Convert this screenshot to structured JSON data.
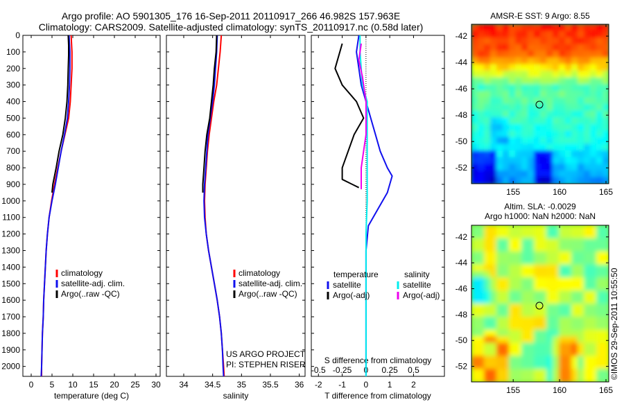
{
  "header": {
    "line1": "Argo profile: AO 5901305_176 16-Sep-2011 20110917_266 46.982S 157.963E",
    "line2": "Climatology: CARS2009. Satellite-adjusted climatology: synTS_20110917.nc (0.58d later)"
  },
  "side_label": "©IMOS 29-Sep-2011 10:55:50",
  "depth_ticks": [
    "0",
    "100",
    "200",
    "300",
    "400",
    "500",
    "600",
    "700",
    "800",
    "900",
    "1000",
    "1100",
    "1200",
    "1300",
    "1400",
    "1500",
    "1600",
    "1700",
    "1800",
    "1900",
    "2000"
  ],
  "colors": {
    "red": "#ff0000",
    "blue": "#1010ee",
    "black": "#000000",
    "cyan": "#00eeee",
    "magenta": "#ee00ee"
  },
  "chart_data": [
    {
      "type": "line",
      "xlabel": "temperature (deg C)",
      "xlim": [
        -2,
        31
      ],
      "x_ticks": [
        "0",
        "5",
        "10",
        "15",
        "20",
        "25",
        "30"
      ],
      "ylim": [
        0,
        2060
      ],
      "y_inverted": true,
      "legend": {
        "placement": "lower-middle",
        "entries": [
          "climatology",
          "satellite-adj. clim.",
          "Argo(..raw -QC)"
        ]
      },
      "series": [
        {
          "name": "climatology",
          "color": "#ff0000",
          "points": [
            [
              9.6,
              0
            ],
            [
              9.8,
              100
            ],
            [
              9.8,
              200
            ],
            [
              9.6,
              300
            ],
            [
              9.4,
              400
            ],
            [
              9.0,
              500
            ],
            [
              8.1,
              600
            ],
            [
              7.2,
              700
            ],
            [
              6.4,
              800
            ],
            [
              5.6,
              900
            ],
            [
              4.9,
              1000
            ],
            [
              4.3,
              1100
            ],
            [
              3.9,
              1200
            ],
            [
              3.6,
              1300
            ],
            [
              3.4,
              1400
            ],
            [
              3.2,
              1500
            ],
            [
              3.0,
              1600
            ],
            [
              2.9,
              1700
            ],
            [
              2.7,
              1800
            ],
            [
              2.6,
              1900
            ],
            [
              2.5,
              2000
            ],
            [
              2.5,
              2060
            ]
          ]
        },
        {
          "name": "satellite-adj. clim.",
          "color": "#1010ee",
          "points": [
            [
              9.1,
              0
            ],
            [
              9.3,
              100
            ],
            [
              9.3,
              200
            ],
            [
              9.2,
              300
            ],
            [
              9.0,
              400
            ],
            [
              8.7,
              500
            ],
            [
              8.0,
              600
            ],
            [
              7.2,
              700
            ],
            [
              6.5,
              800
            ],
            [
              5.8,
              900
            ],
            [
              5.0,
              1000
            ],
            [
              4.3,
              1100
            ],
            [
              3.9,
              1200
            ],
            [
              3.6,
              1300
            ],
            [
              3.4,
              1400
            ],
            [
              3.2,
              1500
            ],
            [
              3.0,
              1600
            ],
            [
              2.9,
              1700
            ],
            [
              2.7,
              1800
            ],
            [
              2.6,
              1900
            ],
            [
              2.5,
              2000
            ],
            [
              2.4,
              2060
            ]
          ]
        },
        {
          "name": "Argo(..raw -QC)",
          "color": "#000000",
          "points": [
            [
              8.9,
              0
            ],
            [
              9.0,
              60
            ],
            [
              9.0,
              120
            ],
            [
              8.9,
              200
            ],
            [
              8.8,
              300
            ],
            [
              8.6,
              400
            ],
            [
              8.2,
              500
            ],
            [
              7.6,
              600
            ],
            [
              6.7,
              700
            ],
            [
              6.0,
              800
            ],
            [
              5.2,
              900
            ],
            [
              5.0,
              950
            ]
          ]
        }
      ]
    },
    {
      "type": "line",
      "xlabel": "salinity",
      "xlim": [
        33.7,
        36.1
      ],
      "x_ticks": [
        "34",
        "34.5",
        "35",
        "35.5",
        "36"
      ],
      "ylim": [
        0,
        2060
      ],
      "y_inverted": true,
      "legend": {
        "placement": "lower-right",
        "entries": [
          "climatology",
          "satellite-adj. clim.",
          "Argo(..raw -QC)"
        ]
      },
      "annotation": [
        "US ARGO PROJECT",
        "PI: STEPHEN RISER"
      ],
      "series": [
        {
          "name": "climatology",
          "color": "#ff0000",
          "points": [
            [
              34.65,
              0
            ],
            [
              34.63,
              100
            ],
            [
              34.6,
              200
            ],
            [
              34.57,
              300
            ],
            [
              34.52,
              400
            ],
            [
              34.48,
              500
            ],
            [
              34.44,
              600
            ],
            [
              34.41,
              700
            ],
            [
              34.39,
              800
            ],
            [
              34.37,
              900
            ],
            [
              34.36,
              1000
            ],
            [
              34.37,
              1100
            ],
            [
              34.39,
              1200
            ],
            [
              34.43,
              1300
            ],
            [
              34.48,
              1400
            ],
            [
              34.53,
              1500
            ],
            [
              34.58,
              1600
            ],
            [
              34.62,
              1700
            ],
            [
              34.65,
              1800
            ],
            [
              34.67,
              1900
            ],
            [
              34.69,
              2000
            ],
            [
              34.7,
              2060
            ]
          ]
        },
        {
          "name": "satellite-adj. clim.",
          "color": "#1010ee",
          "points": [
            [
              34.58,
              0
            ],
            [
              34.57,
              100
            ],
            [
              34.55,
              200
            ],
            [
              34.53,
              300
            ],
            [
              34.5,
              400
            ],
            [
              34.46,
              500
            ],
            [
              34.42,
              600
            ],
            [
              34.4,
              700
            ],
            [
              34.38,
              800
            ],
            [
              34.36,
              900
            ],
            [
              34.35,
              1000
            ],
            [
              34.36,
              1100
            ],
            [
              34.39,
              1200
            ],
            [
              34.43,
              1300
            ],
            [
              34.48,
              1400
            ],
            [
              34.53,
              1500
            ],
            [
              34.58,
              1600
            ],
            [
              34.62,
              1700
            ],
            [
              34.65,
              1800
            ],
            [
              34.67,
              1900
            ],
            [
              34.68,
              2000
            ],
            [
              34.69,
              2060
            ]
          ]
        },
        {
          "name": "Argo(..raw -QC)",
          "color": "#000000",
          "points": [
            [
              34.57,
              0
            ],
            [
              34.56,
              100
            ],
            [
              34.53,
              200
            ],
            [
              34.51,
              300
            ],
            [
              34.48,
              400
            ],
            [
              34.45,
              500
            ],
            [
              34.4,
              600
            ],
            [
              34.37,
              700
            ],
            [
              34.35,
              800
            ],
            [
              34.33,
              900
            ],
            [
              34.33,
              950
            ]
          ]
        }
      ]
    },
    {
      "type": "line",
      "xlabel": "T difference from climatology",
      "xlabel_top": "S difference from climatology",
      "xlim": [
        -2.3,
        3.3
      ],
      "x_ticks": [
        "-2",
        "-1",
        "0",
        "1",
        "2"
      ],
      "x_ticks_top": [
        "-0.5",
        "-0.25",
        "0",
        "0.25",
        "0.5"
      ],
      "ylim": [
        0,
        2060
      ],
      "y_inverted": true,
      "legend": {
        "placement": "lower-middle",
        "headers": [
          "temperature",
          "salinity"
        ],
        "entries": [
          "satellite",
          "Argo(-adj)",
          "satellite",
          "Argo(-adj)"
        ]
      },
      "series": [
        {
          "name": "satellite",
          "color": "#1010ee",
          "points": [
            [
              -0.3,
              0
            ],
            [
              -0.4,
              100
            ],
            [
              -0.3,
              200
            ],
            [
              -0.2,
              300
            ],
            [
              0.0,
              400
            ],
            [
              0.2,
              500
            ],
            [
              0.4,
              600
            ],
            [
              0.6,
              700
            ],
            [
              0.9,
              800
            ],
            [
              1.1,
              850
            ],
            [
              0.9,
              950
            ],
            [
              0.5,
              1050
            ],
            [
              0.1,
              1150
            ],
            [
              0.0,
              1300
            ],
            [
              0.0,
              1500
            ],
            [
              0.0,
              1700
            ],
            [
              0.0,
              1900
            ],
            [
              0.0,
              2060
            ]
          ]
        },
        {
          "name": "Argo(-adj)",
          "color": "#000000",
          "points": [
            [
              -1.0,
              50
            ],
            [
              -1.3,
              200
            ],
            [
              -1.0,
              300
            ],
            [
              -0.4,
              400
            ],
            [
              -0.1,
              500
            ],
            [
              -0.5,
              600
            ],
            [
              -1.0,
              800
            ],
            [
              -1.0,
              870
            ],
            [
              -0.3,
              920
            ]
          ]
        },
        {
          "name": "satellite",
          "color": "#00eeee",
          "points": [
            [
              -0.25,
              0
            ],
            [
              -0.25,
              100
            ],
            [
              -0.2,
              200
            ],
            [
              -0.15,
              300
            ],
            [
              0.05,
              400
            ],
            [
              0.05,
              600
            ],
            [
              0.05,
              800
            ],
            [
              0.05,
              1000
            ],
            [
              0.0,
              1200
            ],
            [
              0.0,
              1400
            ],
            [
              0.0,
              1600
            ],
            [
              0.0,
              1800
            ],
            [
              0.0,
              2000
            ],
            [
              0.0,
              2060
            ]
          ]
        },
        {
          "name": "Argo(-adj)",
          "color": "#ee00ee",
          "points": [
            [
              -0.2,
              50
            ],
            [
              -0.3,
              150
            ],
            [
              -0.15,
              250
            ],
            [
              0.0,
              400
            ],
            [
              0.0,
              500
            ],
            [
              0.0,
              600
            ],
            [
              -0.1,
              700
            ],
            [
              -0.2,
              800
            ],
            [
              -0.2,
              930
            ]
          ]
        }
      ]
    },
    {
      "type": "heatmap",
      "title": "AMSR-E SST: 9 Argo: 8.55",
      "x_ticks": [
        "155",
        "160",
        "165"
      ],
      "y_ticks": [
        "-42",
        "-44",
        "-46",
        "-48",
        "-50",
        "-52"
      ],
      "xlim": [
        150.5,
        165.3
      ],
      "ylim": [
        -53.2,
        -41.1
      ],
      "colormap": "jet",
      "argo_position": [
        157.963,
        -46.982
      ]
    },
    {
      "type": "heatmap",
      "title_lines": [
        "Altim. SLA: -0.0029",
        "Argo h1000: NaN h2000: NaN"
      ],
      "x_ticks": [
        "155",
        "160",
        "165"
      ],
      "y_ticks": [
        "-42",
        "-44",
        "-46",
        "-48",
        "-50",
        "-52"
      ],
      "xlim": [
        150.5,
        165.3
      ],
      "ylim": [
        -53.2,
        -41.1
      ],
      "colormap": "jet",
      "argo_position": [
        157.963,
        -46.982
      ]
    }
  ]
}
